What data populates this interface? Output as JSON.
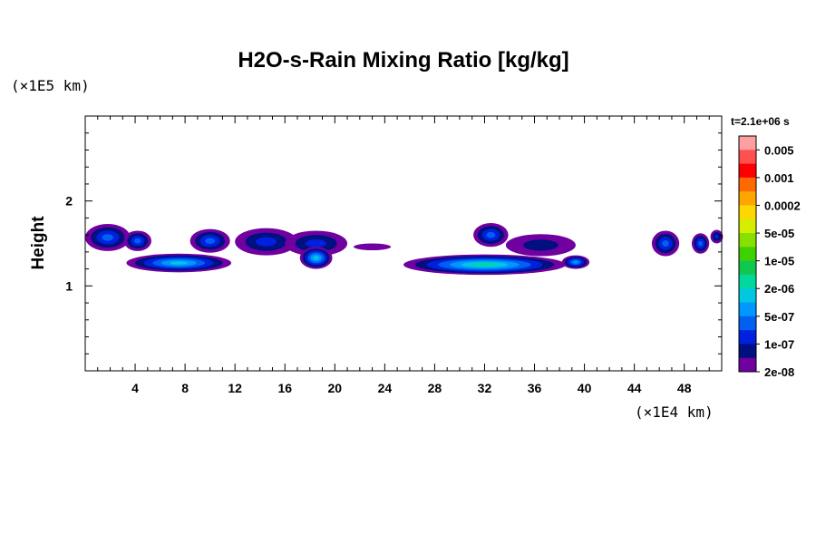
{
  "chart_data": {
    "type": "heatmap",
    "title": "H2O-s-Rain Mixing Ratio [kg/kg]",
    "ylabel": "Height",
    "x_unit": "(×1E4 km)",
    "y_unit": "(×1E5 km)",
    "time_label": "t=2.1e+06 s",
    "xlim": [
      0,
      51
    ],
    "ylim": [
      0,
      3
    ],
    "x_ticks": [
      "4",
      "8",
      "12",
      "16",
      "20",
      "24",
      "28",
      "32",
      "36",
      "40",
      "44",
      "48"
    ],
    "x_tick_values": [
      4,
      8,
      12,
      16,
      20,
      24,
      28,
      32,
      36,
      40,
      44,
      48
    ],
    "y_ticks": [
      "1",
      "2"
    ],
    "y_tick_values": [
      1,
      2
    ],
    "colorbar": {
      "labels": [
        "0.005",
        "0.001",
        "0.0002",
        "5e-05",
        "1e-05",
        "2e-06",
        "5e-07",
        "1e-07",
        "2e-08"
      ],
      "colors": [
        "#ffa0a0",
        "#ff5050",
        "#ff0000",
        "#ff6a00",
        "#ffa500",
        "#ffd700",
        "#d4ee00",
        "#88e000",
        "#40d000",
        "#10c850",
        "#00d8a0",
        "#00c8e0",
        "#0098ff",
        "#0060f0",
        "#0020e0",
        "#001080",
        "#7000a0"
      ]
    },
    "blobs": [
      {
        "cx": 1.8,
        "cy": 1.57,
        "rx": 1.8,
        "ry": 0.16,
        "level": 3
      },
      {
        "cx": 4.2,
        "cy": 1.53,
        "rx": 1.1,
        "ry": 0.12,
        "level": 3
      },
      {
        "cx": 7.5,
        "cy": 1.27,
        "rx": 4.2,
        "ry": 0.11,
        "level": 5
      },
      {
        "cx": 10,
        "cy": 1.53,
        "rx": 1.6,
        "ry": 0.14,
        "level": 3
      },
      {
        "cx": 14.5,
        "cy": 1.52,
        "rx": 2.5,
        "ry": 0.16,
        "level": 2
      },
      {
        "cx": 18.5,
        "cy": 1.5,
        "rx": 2.5,
        "ry": 0.15,
        "level": 2
      },
      {
        "cx": 18.5,
        "cy": 1.33,
        "rx": 1.3,
        "ry": 0.13,
        "level": 5
      },
      {
        "cx": 23,
        "cy": 1.46,
        "rx": 1.5,
        "ry": 0.04,
        "level": 0
      },
      {
        "cx": 32,
        "cy": 1.25,
        "rx": 6.5,
        "ry": 0.12,
        "level": 6
      },
      {
        "cx": 32.5,
        "cy": 1.6,
        "rx": 1.4,
        "ry": 0.14,
        "level": 3
      },
      {
        "cx": 36.5,
        "cy": 1.48,
        "rx": 2.8,
        "ry": 0.13,
        "level": 1
      },
      {
        "cx": 39.3,
        "cy": 1.28,
        "rx": 1.1,
        "ry": 0.08,
        "level": 4
      },
      {
        "cx": 46.5,
        "cy": 1.5,
        "rx": 1.1,
        "ry": 0.15,
        "level": 3
      },
      {
        "cx": 49.3,
        "cy": 1.5,
        "rx": 0.7,
        "ry": 0.12,
        "level": 3
      },
      {
        "cx": 50.6,
        "cy": 1.58,
        "rx": 0.5,
        "ry": 0.08,
        "level": 2
      }
    ]
  }
}
